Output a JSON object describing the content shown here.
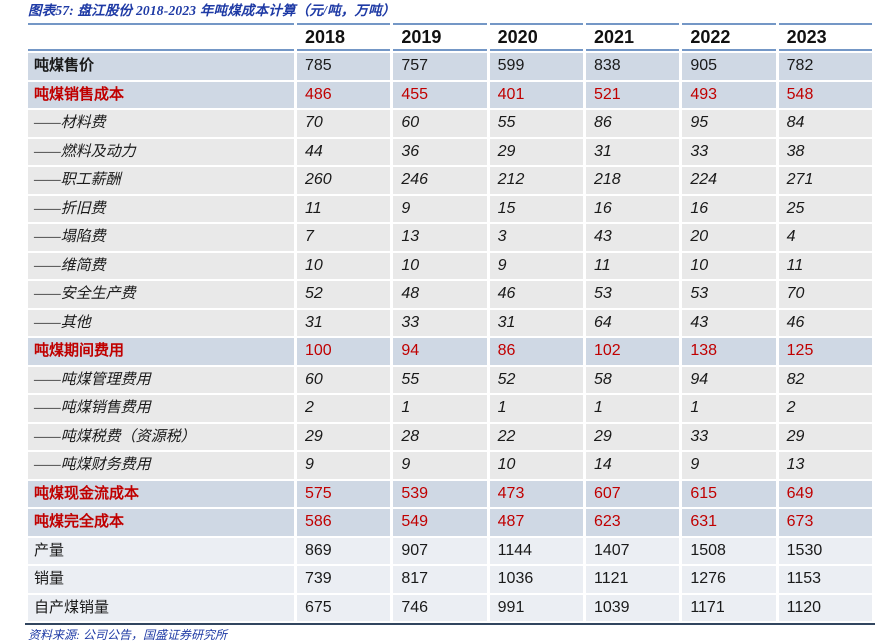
{
  "title": "图表57: 盘江股份 2018-2023 年吨煤成本计算（元/吨，万吨）",
  "footer": "资料来源: 公司公告，国盛证券研究所",
  "colors": {
    "title_blue": "#1e3aa5",
    "highlight_red": "#c00000",
    "key_row_bg": "#cfd8e4",
    "detail_row_bg": "#e9e9e9",
    "plain_row_bg": "#ebeef3",
    "header_rule_blue": "#7497c6",
    "bottom_rule_navy": "#32465f"
  },
  "table": {
    "years": [
      "2018",
      "2019",
      "2020",
      "2021",
      "2022",
      "2023"
    ],
    "rows": [
      {
        "label": "吨煤售价",
        "values": [
          "785",
          "757",
          "599",
          "838",
          "905",
          "782"
        ]
      },
      {
        "label": "吨煤销售成本",
        "values": [
          "486",
          "455",
          "401",
          "521",
          "493",
          "548"
        ]
      },
      {
        "label": "——材料费",
        "values": [
          "70",
          "60",
          "55",
          "86",
          "95",
          "84"
        ]
      },
      {
        "label": "——燃料及动力",
        "values": [
          "44",
          "36",
          "29",
          "31",
          "33",
          "38"
        ]
      },
      {
        "label": "——职工薪酬",
        "values": [
          "260",
          "246",
          "212",
          "218",
          "224",
          "271"
        ]
      },
      {
        "label": "——折旧费",
        "values": [
          "11",
          "9",
          "15",
          "16",
          "16",
          "25"
        ]
      },
      {
        "label": "——塌陷费",
        "values": [
          "7",
          "13",
          "3",
          "43",
          "20",
          "4"
        ]
      },
      {
        "label": "——维简费",
        "values": [
          "10",
          "10",
          "9",
          "11",
          "10",
          "11"
        ]
      },
      {
        "label": "——安全生产费",
        "values": [
          "52",
          "48",
          "46",
          "53",
          "53",
          "70"
        ]
      },
      {
        "label": "——其他",
        "values": [
          "31",
          "33",
          "31",
          "64",
          "43",
          "46"
        ]
      },
      {
        "label": "吨煤期间费用",
        "values": [
          "100",
          "94",
          "86",
          "102",
          "138",
          "125"
        ]
      },
      {
        "label": "——吨煤管理费用",
        "values": [
          "60",
          "55",
          "52",
          "58",
          "94",
          "82"
        ]
      },
      {
        "label": "——吨煤销售费用",
        "values": [
          "2",
          "1",
          "1",
          "1",
          "1",
          "2"
        ]
      },
      {
        "label": "——吨煤税费（资源税）",
        "values": [
          "29",
          "28",
          "22",
          "29",
          "33",
          "29"
        ]
      },
      {
        "label": "——吨煤财务费用",
        "values": [
          "9",
          "9",
          "10",
          "14",
          "9",
          "13"
        ]
      },
      {
        "label": "吨煤现金流成本",
        "values": [
          "575",
          "539",
          "473",
          "607",
          "615",
          "649"
        ]
      },
      {
        "label": "吨煤完全成本",
        "values": [
          "586",
          "549",
          "487",
          "623",
          "631",
          "673"
        ]
      },
      {
        "label": "产量",
        "values": [
          "869",
          "907",
          "1144",
          "1407",
          "1508",
          "1530"
        ]
      },
      {
        "label": "销量",
        "values": [
          "739",
          "817",
          "1036",
          "1121",
          "1276",
          "1153"
        ]
      },
      {
        "label": "自产煤销量",
        "values": [
          "675",
          "746",
          "991",
          "1039",
          "1171",
          "1120"
        ]
      }
    ]
  }
}
